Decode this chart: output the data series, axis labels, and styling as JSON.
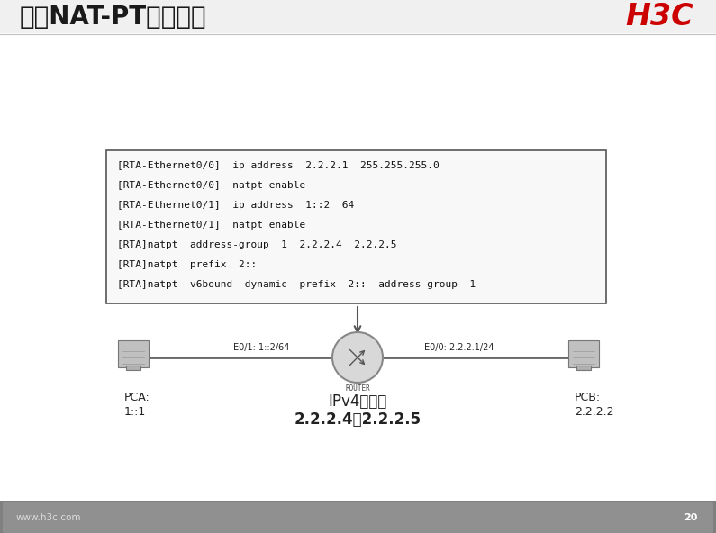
{
  "title": "动态NAT-PT配置示例",
  "h3c_logo": "H3C",
  "bg_color": "#f2f2f2",
  "slide_bg": "#ffffff",
  "title_bg": "#f0f0f0",
  "footer_text": "www.h3c.com",
  "page_num": "20",
  "code_lines": [
    "[RTA-Ethernet0/0]  ip address  2.2.2.1  255.255.255.0",
    "[RTA-Ethernet0/0]  natpt enable",
    "[RTA-Ethernet0/1]  ip address  1::2  64",
    "[RTA-Ethernet0/1]  natpt enable",
    "[RTA]natpt  address-group  1  2.2.2.4  2.2.2.5",
    "[RTA]natpt  prefix  2::",
    "[RTA]natpt  v6bound  dynamic  prefix  2::  address-group  1"
  ],
  "pca_label": "PCA:",
  "pca_addr": "1::1",
  "pcb_label": "PCB:",
  "pcb_addr": "2.2.2.2",
  "router_label": "ROUTER",
  "e01_label": "E0/1: 1::2/64",
  "e00_label": "E0/0: 2.2.2.1/24",
  "pool_label": "IPv4地址池",
  "pool_addr": "2.2.2.4－2.2.2.5",
  "title_color": "#1a1a1a",
  "code_box_bg": "#f8f8f8",
  "code_border_color": "#555555",
  "code_text_color": "#111111",
  "arrow_color": "#555555",
  "line_color": "#666666",
  "footer_bar_color": "#808080"
}
